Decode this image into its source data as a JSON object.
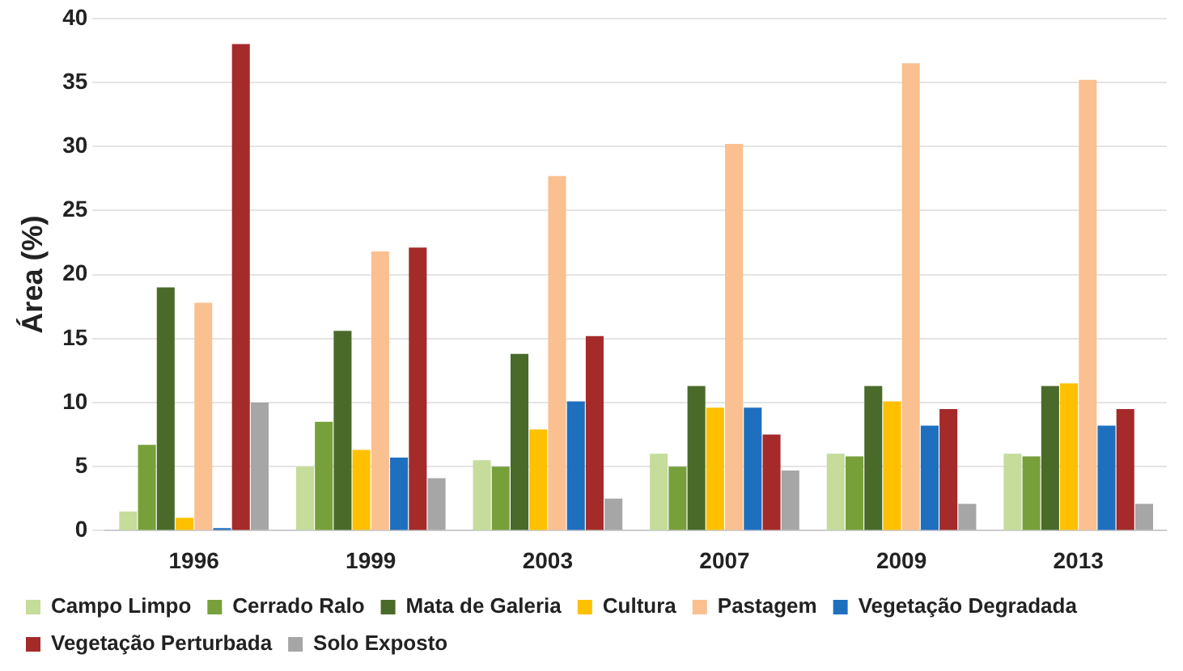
{
  "chart_data": {
    "type": "bar",
    "ylabel": "Área (%)",
    "categories": [
      "1996",
      "1999",
      "2003",
      "2007",
      "2009",
      "2013"
    ],
    "series": [
      {
        "name": "Campo Limpo",
        "color": "#c5dc9a",
        "values": [
          1.5,
          5,
          5.5,
          6,
          6,
          6
        ]
      },
      {
        "name": "Cerrado Ralo",
        "color": "#77a03a",
        "values": [
          6.7,
          8.5,
          5,
          5,
          5.8,
          5.8
        ]
      },
      {
        "name": "Mata de Galeria",
        "color": "#4a6a2a",
        "values": [
          19,
          15.6,
          13.8,
          11.3,
          11.3,
          11.3
        ]
      },
      {
        "name": "Cultura",
        "color": "#ffc000",
        "values": [
          1,
          6.3,
          7.9,
          9.6,
          10.1,
          11.5
        ]
      },
      {
        "name": "Pastagem",
        "color": "#fac090",
        "values": [
          17.8,
          21.8,
          27.7,
          30.2,
          36.5,
          35.2
        ]
      },
      {
        "name": "Vegetação Degradada",
        "color": "#1f6fbf",
        "values": [
          0.2,
          5.7,
          10.1,
          9.6,
          8.2,
          8.2
        ]
      },
      {
        "name": "Vegetação Perturbada",
        "color": "#a52a2a",
        "values": [
          38,
          22.1,
          15.2,
          7.5,
          9.5,
          9.5
        ]
      },
      {
        "name": "Solo Exposto",
        "color": "#a6a6a6",
        "values": [
          10,
          4.1,
          2.5,
          4.7,
          2.1,
          2.1
        ]
      }
    ],
    "ylim": [
      0,
      40
    ],
    "yticks": [
      0,
      5,
      10,
      15,
      20,
      25,
      30,
      35,
      40
    ],
    "grid": "y",
    "legend": "bottom"
  }
}
